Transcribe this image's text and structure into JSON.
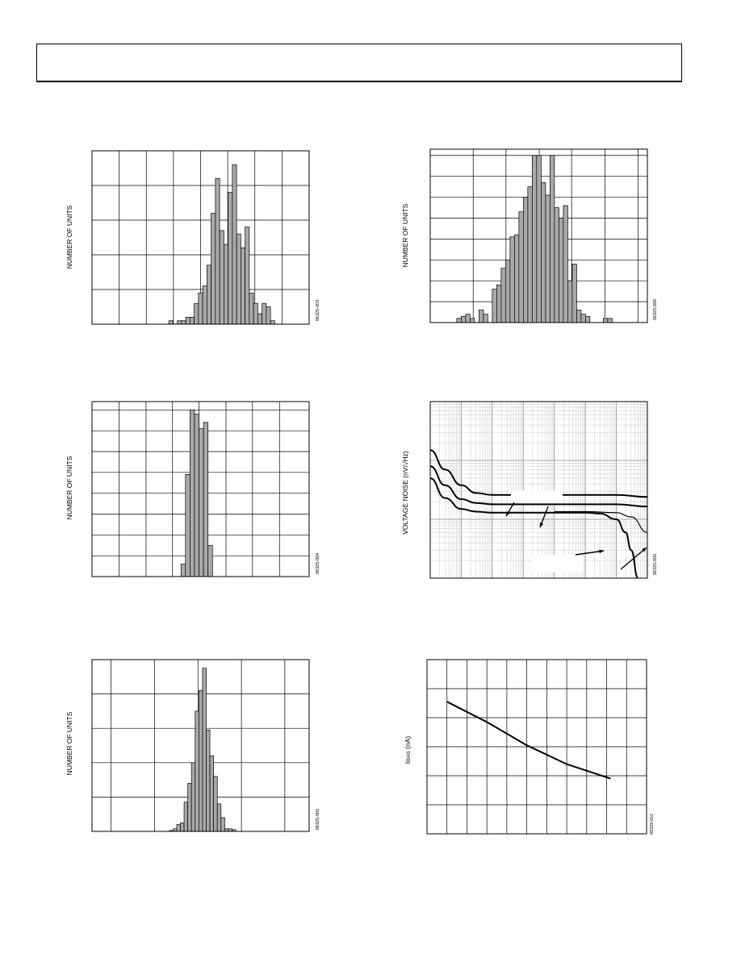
{
  "page": {
    "header_title": ""
  },
  "chart_data": [
    {
      "id": "hist-1",
      "type": "bar",
      "title": "",
      "xlabel": "",
      "ylabel": "NUMBER OF UNITS",
      "figure_id": "06325-003",
      "grid": true,
      "xlim": [
        0,
        41
      ],
      "ylim": [
        0,
        50
      ],
      "grid_x": [
        0,
        5.125,
        10.25,
        15.375,
        20.5,
        25.625,
        30.75,
        35.875,
        41
      ],
      "grid_y": [
        0,
        10,
        20,
        30,
        40,
        50
      ],
      "bar_start": 14.5,
      "bar_width": 0.8,
      "values": [
        1,
        0,
        1,
        1,
        2,
        2,
        6,
        9,
        11,
        17,
        32,
        42,
        27,
        23,
        38,
        46,
        26,
        22,
        28,
        9,
        6,
        3,
        6,
        5,
        1
      ]
    },
    {
      "id": "hist-2",
      "type": "bar",
      "title": "",
      "xlabel": "",
      "ylabel": "NUMBER OF UNITS",
      "figure_id": "06325-006",
      "grid": true,
      "xlim": [
        0,
        45
      ],
      "ylim": [
        0,
        8.3
      ],
      "grid_x": [
        0,
        8.9,
        15.7,
        22.6,
        29.3,
        36.2,
        43.1,
        45
      ],
      "grid_y": [
        0,
        1,
        2,
        3,
        4,
        5,
        6,
        7,
        8
      ],
      "bar_start": 5.5,
      "bar_width": 0.92,
      "values": [
        0.2,
        0.3,
        0.4,
        0.2,
        0,
        0.6,
        0.4,
        0,
        1.6,
        1.8,
        2.6,
        3.0,
        4.1,
        4.2,
        5.3,
        6.0,
        6.5,
        8.0,
        8.0,
        6.7,
        6.1,
        8.0,
        5.5,
        5.0,
        5.6,
        2.0,
        2.8,
        0.6,
        0.4,
        0.3,
        0,
        0,
        0,
        0.2,
        0.2
      ]
    },
    {
      "id": "hist-3",
      "type": "bar",
      "title": "",
      "xlabel": "",
      "ylabel": "NUMBER OF UNITS",
      "figure_id": "06325-004",
      "grid": true,
      "xlim": [
        0,
        41
      ],
      "ylim": [
        0,
        8.4
      ],
      "grid_x": [
        0,
        5.1,
        10.2,
        15.2,
        20.2,
        25.3,
        30.3,
        35.4,
        41
      ],
      "grid_y": [
        0,
        1,
        2,
        3,
        4,
        5,
        6,
        7,
        8
      ],
      "bar_start": 16.8,
      "bar_width": 0.85,
      "values": [
        0.6,
        4.9,
        8.0,
        7.8,
        7.1,
        7.4,
        1.5
      ]
    },
    {
      "id": "noise-1",
      "type": "line",
      "title": "",
      "xlabel": "",
      "ylabel": "VOLTAGE NOISE (nV/√Hz)",
      "figure_id": "06325-050",
      "grid": true,
      "xscale": "log",
      "yscale": "log",
      "xlim": [
        1,
        10000000
      ],
      "ylim": [
        1,
        1000
      ],
      "series": [
        {
          "values": [
            [
              1,
              150
            ],
            [
              3,
              70
            ],
            [
              10,
              38
            ],
            [
              30,
              28
            ],
            [
              100,
              26
            ],
            [
              1000,
              26
            ],
            [
              10000,
              26
            ],
            [
              100000,
              26
            ],
            [
              1000000,
              26
            ],
            [
              10000000,
              24
            ]
          ]
        },
        {
          "values": [
            [
              1,
              80
            ],
            [
              3,
              38
            ],
            [
              10,
              22
            ],
            [
              30,
              19
            ],
            [
              100,
              18
            ],
            [
              1000,
              18
            ],
            [
              10000,
              18
            ],
            [
              100000,
              18
            ],
            [
              1000000,
              18
            ],
            [
              10000000,
              16.5
            ]
          ]
        },
        {
          "values": [
            [
              1,
              50
            ],
            [
              3,
              23
            ],
            [
              10,
              15
            ],
            [
              30,
              13.5
            ],
            [
              100,
              13
            ],
            [
              1000,
              13
            ],
            [
              10000,
              13
            ],
            [
              100000,
              13
            ],
            [
              300000,
              12.5
            ],
            [
              1000000,
              10
            ],
            [
              2000000,
              6
            ],
            [
              3000000,
              3
            ],
            [
              5000000,
              1
            ]
          ]
        },
        {
          "values": [
            [
              10000,
              13.5
            ],
            [
              100000,
              13.5
            ],
            [
              1000000,
              13
            ],
            [
              3000000,
              11
            ],
            [
              10000000,
              6
            ]
          ]
        }
      ]
    },
    {
      "id": "hist-4",
      "type": "bar",
      "title": "",
      "xlabel": "",
      "ylabel": "NUMBER OF UNITS",
      "figure_id": "06325-005",
      "grid": true,
      "xlim": [
        0,
        50
      ],
      "ylim": [
        0,
        100
      ],
      "grid_x": [
        0,
        4.4,
        14.4,
        24.4,
        34.4,
        44.4,
        50
      ],
      "grid_y": [
        0,
        20,
        40,
        60,
        80,
        100
      ],
      "bar_start": 17.8,
      "bar_width": 0.85,
      "values": [
        0.5,
        1.5,
        4,
        5,
        17,
        28,
        40,
        70,
        82,
        95,
        59,
        44,
        32,
        16,
        8,
        1.5,
        1.5,
        1
      ]
    },
    {
      "id": "ibias-1",
      "type": "line",
      "title": "",
      "xlabel": "",
      "ylabel": "IBIAS (nA)",
      "figure_id": "06325-011",
      "grid": true,
      "xlim": [
        0,
        11
      ],
      "ylim": [
        0,
        6
      ],
      "grid_x": [
        0,
        1,
        2,
        3,
        4,
        5,
        6,
        7,
        8,
        9,
        10,
        11
      ],
      "grid_y": [
        0,
        1,
        2,
        3,
        4,
        5,
        6
      ],
      "series": [
        {
          "values": [
            [
              1,
              4.55
            ],
            [
              3,
              3.85
            ],
            [
              5,
              3.05
            ],
            [
              7,
              2.4
            ],
            [
              9.2,
              1.9
            ]
          ]
        }
      ]
    }
  ]
}
